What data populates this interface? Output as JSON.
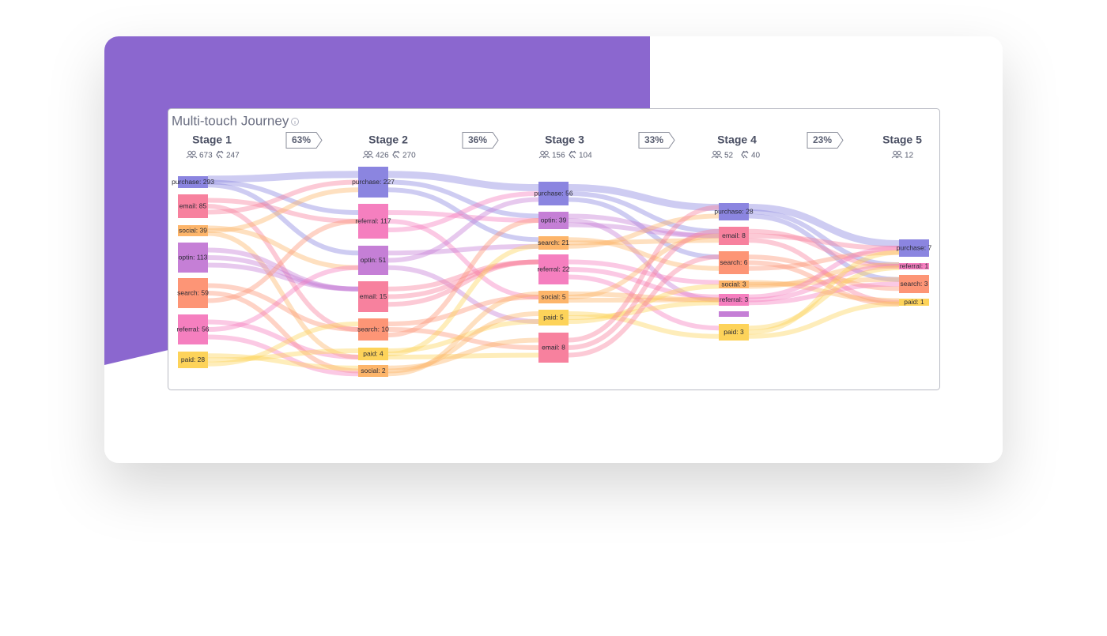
{
  "title": "Multi-touch Journey",
  "stages": [
    {
      "name": "Stage 1",
      "users": "673",
      "touches": "247",
      "nodes": [
        "purchase: 293",
        "email: 85",
        "social: 39",
        "optin: 113",
        "search: 59",
        "referral: 56",
        "paid: 28"
      ]
    },
    {
      "name": "Stage 2",
      "users": "426",
      "touches": "270",
      "nodes": [
        "purchase: 227",
        "referral: 117",
        "optin: 51",
        "email: 15",
        "search: 10",
        "paid: 4",
        "social: 2"
      ]
    },
    {
      "name": "Stage 3",
      "users": "156",
      "touches": "104",
      "nodes": [
        "purchase: 56",
        "optin: 39",
        "search: 21",
        "referral: 22",
        "social: 5",
        "paid: 5",
        "email: 8"
      ]
    },
    {
      "name": "Stage 4",
      "users": "52",
      "touches": "40",
      "nodes": [
        "purchase: 28",
        "email: 8",
        "search: 6",
        "social: 3",
        "referral: 3",
        "paid: 3"
      ]
    },
    {
      "name": "Stage 5",
      "users": "12",
      "nodes": [
        "purchase: 7",
        "referral: 1",
        "search: 3",
        "paid: 1"
      ]
    }
  ],
  "conversions": [
    "63%",
    "36%",
    "33%",
    "23%"
  ]
}
